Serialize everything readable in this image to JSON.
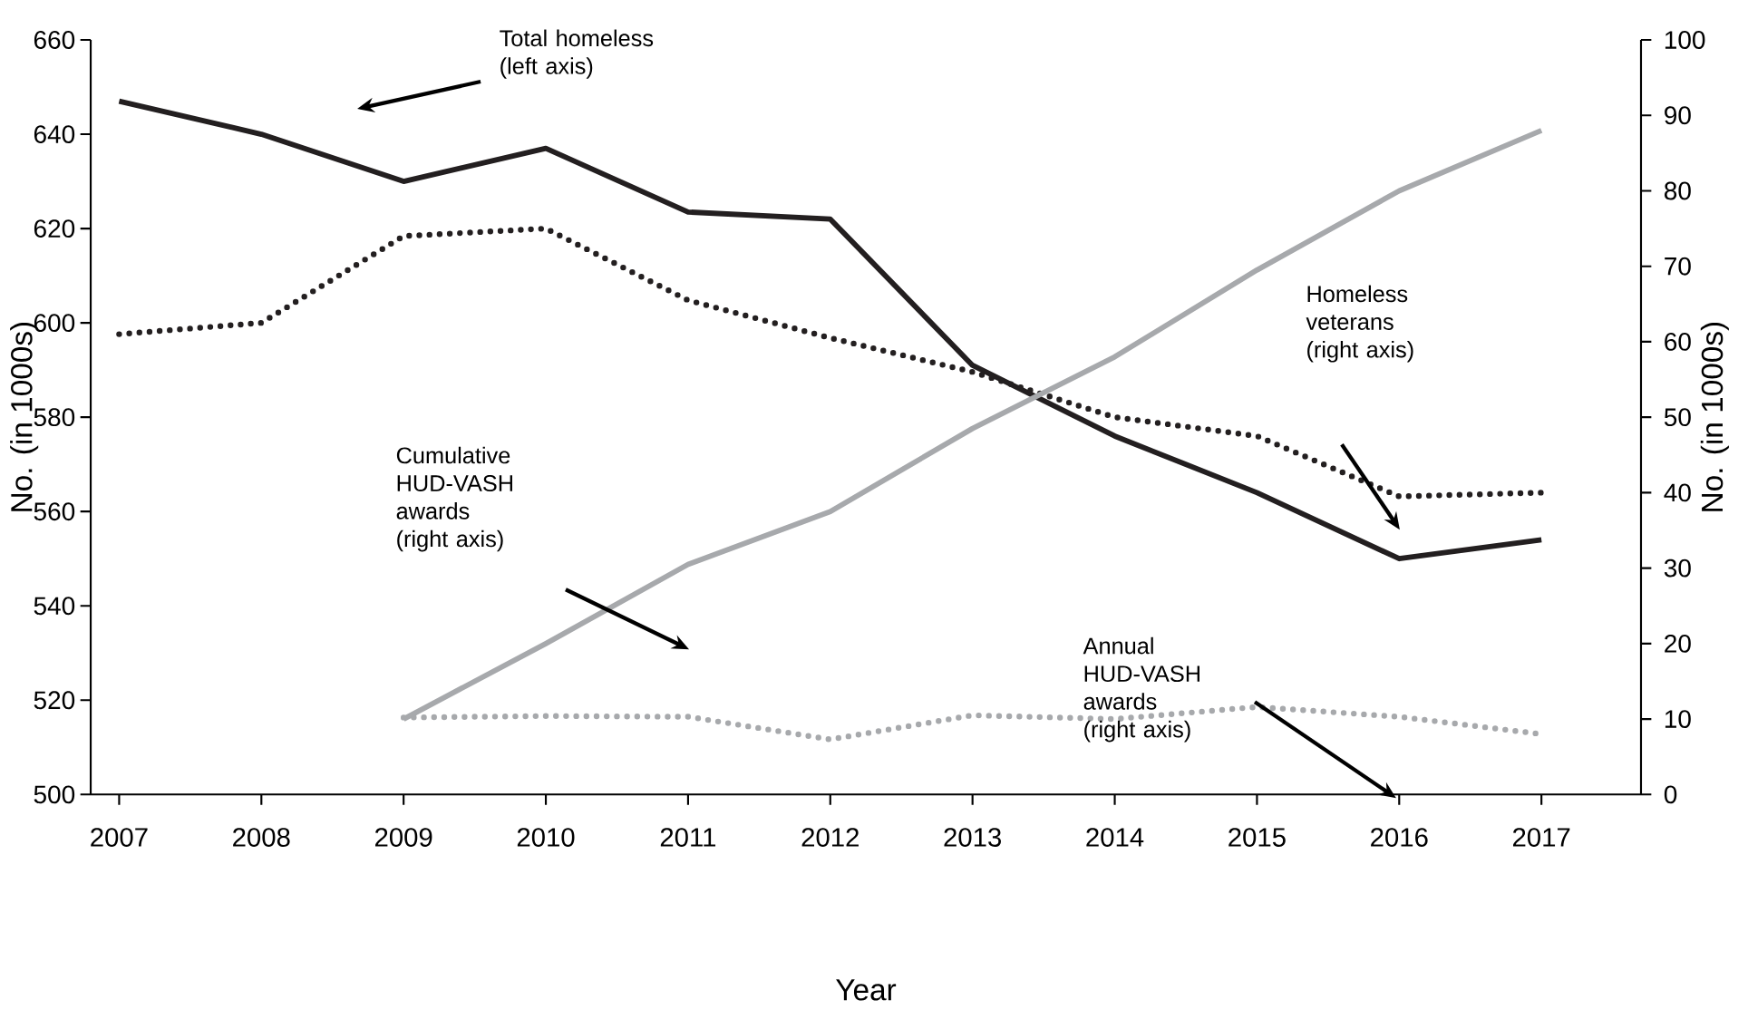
{
  "chart_data": {
    "type": "line",
    "xlabel": "Year",
    "ylabel": "No. (in 1000s)",
    "y2label": "No. (in 1000s)",
    "x": [
      2007,
      2008,
      2009,
      2010,
      2011,
      2012,
      2013,
      2014,
      2015,
      2016,
      2017
    ],
    "xlim": [
      2006.8,
      2017.7
    ],
    "xticks": [
      2007,
      2008,
      2009,
      2010,
      2011,
      2012,
      2013,
      2014,
      2015,
      2016,
      2017
    ],
    "ylim": [
      500,
      660
    ],
    "yticks": [
      500,
      520,
      540,
      560,
      580,
      600,
      620,
      640,
      660
    ],
    "y2lim": [
      0,
      100
    ],
    "y2ticks": [
      0,
      10,
      20,
      30,
      40,
      50,
      60,
      70,
      80,
      90,
      100
    ],
    "grid": false,
    "marker": "none",
    "series": [
      {
        "color": "#231f20",
        "line_style": "solid",
        "values": [
          647,
          640,
          630,
          637,
          623.5,
          622,
          591,
          576,
          564,
          550,
          554
        ]
      },
      {
        "color": "#231f20",
        "line_style": "dotted",
        "axis": "y2",
        "values": [
          61,
          62.5,
          74,
          75,
          65.5,
          60.5,
          56,
          50,
          47.5,
          39.5,
          40
        ]
      },
      {
        "color": "#a7a9ac",
        "line_style": "solid",
        "axis": "y2",
        "values": [
          null,
          null,
          10,
          20,
          30.5,
          37.5,
          48.5,
          58,
          69.5,
          80,
          88
        ]
      },
      {
        "color": "#a7a9ac",
        "line_style": "dotted",
        "axis": "y2",
        "values": [
          null,
          null,
          10.2,
          10.4,
          10.3,
          7.3,
          10.5,
          10,
          11.6,
          10.3,
          8
        ]
      }
    ],
    "annotations": [
      "Total homeless (left axis)",
      "Homeless veterans (right axis)",
      "Cumulative HUD-VASH awards (right axis)",
      "Annual HUD-VASH awards (right axis)"
    ]
  }
}
